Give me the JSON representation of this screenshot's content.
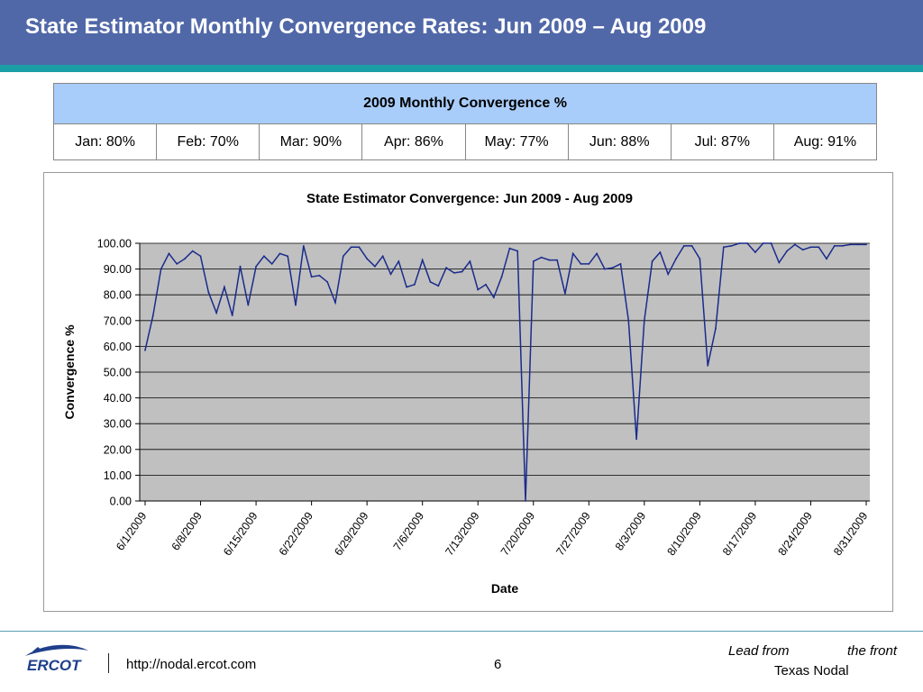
{
  "header": {
    "title": "State Estimator Monthly Convergence Rates: Jun 2009 – Aug 2009"
  },
  "table": {
    "title": "2009 Monthly Convergence %",
    "cells": [
      "Jan: 80%",
      "Feb: 70%",
      "Mar: 90%",
      "Apr: 86%",
      "May: 77%",
      "Jun: 88%",
      "Jul: 87%",
      "Aug: 91%"
    ]
  },
  "chart_data": {
    "type": "line",
    "title": "State Estimator Convergence: Jun 2009 - Aug 2009",
    "xlabel": "Date",
    "ylabel": "Convergence %",
    "ylim": [
      0,
      100
    ],
    "yticks": [
      "0.00",
      "10.00",
      "20.00",
      "30.00",
      "40.00",
      "50.00",
      "60.00",
      "70.00",
      "80.00",
      "90.00",
      "100.00"
    ],
    "xticks": [
      "6/1/2009",
      "6/8/2009",
      "6/15/2009",
      "6/22/2009",
      "6/29/2009",
      "7/6/2009",
      "7/13/2009",
      "7/20/2009",
      "7/27/2009",
      "8/3/2009",
      "8/10/2009",
      "8/17/2009",
      "8/24/2009",
      "8/31/2009"
    ],
    "x_start": "6/1/2009",
    "grid": true,
    "legend": "none",
    "line_color": "#1a2b8c",
    "plot_bg": "#c0c0c0",
    "series": [
      {
        "values": [
          58.5,
          72,
          90,
          96,
          92,
          94,
          97,
          95,
          81,
          73,
          83,
          72,
          91,
          76,
          91,
          95,
          92,
          96,
          95,
          76,
          99,
          87,
          87.5,
          85,
          77,
          95,
          98.5,
          98.5,
          94,
          91,
          95,
          88,
          93,
          83,
          84,
          93.5,
          85,
          83.5,
          90.5,
          88.5,
          89,
          93,
          82,
          84,
          79,
          87,
          98,
          97,
          0,
          93,
          94.5,
          93.5,
          93.5,
          80.5,
          96,
          92,
          92,
          96,
          90,
          90.5,
          92,
          70,
          24,
          70,
          93,
          96.5,
          88,
          94,
          99,
          99,
          94,
          52.5,
          67,
          98.5,
          99,
          100,
          100,
          96.5,
          100,
          100,
          92.5,
          97,
          99.5,
          97.5,
          98.5,
          98.5,
          94,
          99,
          99,
          99.5,
          99.5,
          99.5
        ]
      }
    ]
  },
  "footer": {
    "logo_text": "ERCOT",
    "url": "http://nodal.ercot.com",
    "page": "6",
    "tagline_a": "Lead from",
    "tagline_b": "the front",
    "org": "Texas Nodal"
  },
  "colors": {
    "header_bg": "#5168a8",
    "stripe": "#1a9fa7",
    "table_header_bg": "#a9cdfa",
    "logo_blue": "#1f3f8c"
  }
}
